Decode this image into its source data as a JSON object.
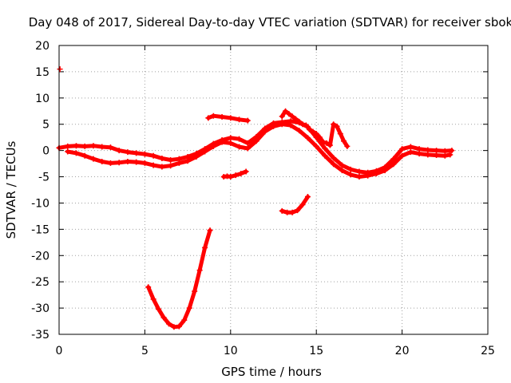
{
  "chart_data": {
    "type": "scatter",
    "title": "Day 048 of 2017, Sidereal Day-to-day VTEC variation (SDTVAR) for receiver sbok",
    "xlabel": "GPS time / hours",
    "ylabel": "SDTVAR / TECUs",
    "xlim": [
      0,
      25
    ],
    "ylim": [
      -35,
      20
    ],
    "xticks": [
      0,
      5,
      10,
      15,
      20,
      25
    ],
    "yticks": [
      20,
      15,
      10,
      5,
      0,
      -5,
      -10,
      -15,
      -20,
      -25,
      -30,
      -35
    ],
    "grid": true,
    "marker": "plus",
    "color": "#ff0000",
    "series": [
      {
        "name": "main-trace-upper",
        "x": [
          0,
          0.5,
          1,
          1.5,
          2,
          2.5,
          3,
          3.5,
          4,
          4.5,
          5,
          5.5,
          6,
          6.5,
          7,
          7.5,
          8,
          8.5,
          9,
          9.5,
          10,
          10.5,
          11,
          11.5,
          12,
          12.5,
          13,
          13.5,
          14,
          14.5,
          15,
          15.5,
          16,
          16.5,
          17,
          17.5,
          18,
          18.5,
          19,
          19.5,
          20,
          20.5,
          21,
          21.5,
          22,
          22.5,
          22.9
        ],
        "y": [
          0.5,
          0.8,
          0.9,
          0.8,
          0.9,
          0.7,
          0.6,
          0,
          -0.3,
          -0.5,
          -0.7,
          -1,
          -1.5,
          -1.8,
          -1.6,
          -1.2,
          -0.6,
          0.3,
          1.3,
          2,
          2.4,
          2.2,
          1.4,
          2.6,
          4.2,
          5.2,
          5.4,
          5.6,
          5.3,
          4.5,
          2.5,
          0.4,
          -1.4,
          -2.8,
          -3.6,
          -4,
          -4.2,
          -3.9,
          -3.2,
          -1.6,
          0.3,
          0.7,
          0.3,
          0.1,
          0,
          -0.1,
          0
        ]
      },
      {
        "name": "main-trace-lower",
        "x": [
          0.5,
          1,
          1.5,
          2,
          2.5,
          3,
          3.5,
          4,
          4.5,
          5,
          5.5,
          6,
          6.5,
          7,
          7.5,
          8,
          8.5,
          9,
          9.5,
          10,
          10.5,
          11,
          11.5,
          12,
          12.5,
          13,
          13.5,
          14,
          14.5,
          15,
          15.5,
          16,
          16.5,
          17,
          17.5,
          18,
          18.5,
          19,
          19.5,
          20,
          20.5,
          21,
          21.5,
          22,
          22.5,
          22.8
        ],
        "y": [
          -0.2,
          -0.5,
          -1,
          -1.6,
          -2.1,
          -2.4,
          -2.3,
          -2.1,
          -2.2,
          -2.4,
          -2.8,
          -3.1,
          -2.9,
          -2.4,
          -2,
          -1.2,
          -0.2,
          0.8,
          1.6,
          1.4,
          0.7,
          0.4,
          1.8,
          3.6,
          4.6,
          5,
          4.8,
          3.8,
          2.4,
          0.8,
          -1,
          -2.6,
          -3.8,
          -4.6,
          -5,
          -4.8,
          -4.4,
          -3.8,
          -2.6,
          -1,
          -0.3,
          -0.6,
          -0.8,
          -0.9,
          -1,
          -0.8
        ]
      },
      {
        "name": "crest-spikes",
        "x": [
          13,
          13.2,
          13.4,
          13.6,
          13.8,
          14,
          14.2,
          14.4,
          14.6,
          14.8,
          15,
          15.2,
          15.4,
          15.6,
          15.8,
          16,
          16.2,
          16.4,
          16.6,
          16.8
        ],
        "y": [
          6.5,
          7.5,
          7,
          6.5,
          6,
          5.5,
          5,
          4.8,
          4,
          3.6,
          3.2,
          2.5,
          1.6,
          1.4,
          1,
          5,
          4.6,
          3.2,
          1.8,
          0.8
        ]
      },
      {
        "name": "isolated-point",
        "x": [
          0.05
        ],
        "y": [
          15.5
        ]
      },
      {
        "name": "segment-upper",
        "x": [
          8.7,
          9,
          9.5,
          10,
          10.5,
          11
        ],
        "y": [
          6.2,
          6.6,
          6.4,
          6.2,
          5.9,
          5.7
        ]
      },
      {
        "name": "segment-mid",
        "x": [
          9.6,
          9.8,
          10,
          10.3,
          10.6,
          10.9
        ],
        "y": [
          -5,
          -4.9,
          -5,
          -4.7,
          -4.4,
          -4
        ]
      },
      {
        "name": "segment-hook",
        "x": [
          13,
          13.3,
          13.6,
          13.9,
          14.2,
          14.5
        ],
        "y": [
          -11.5,
          -11.8,
          -11.8,
          -11.4,
          -10.3,
          -8.8
        ]
      },
      {
        "name": "deep-dip",
        "x": [
          5.2,
          5.5,
          5.8,
          6.1,
          6.4,
          6.7,
          7,
          7.3,
          7.6,
          7.9,
          8.2,
          8.5,
          8.8
        ],
        "y": [
          -26,
          -28.3,
          -30.2,
          -31.8,
          -33,
          -33.6,
          -33.5,
          -32.3,
          -30,
          -26.8,
          -22.8,
          -18.5,
          -15.2
        ]
      }
    ]
  }
}
